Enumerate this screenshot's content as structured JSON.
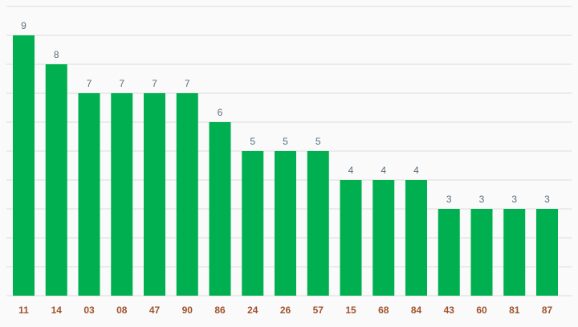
{
  "chart_data": {
    "type": "bar",
    "categories": [
      "11",
      "14",
      "03",
      "08",
      "47",
      "90",
      "86",
      "24",
      "26",
      "57",
      "15",
      "68",
      "84",
      "43",
      "60",
      "81",
      "87"
    ],
    "values": [
      9,
      8,
      7,
      7,
      7,
      7,
      6,
      5,
      5,
      5,
      4,
      4,
      4,
      3,
      3,
      3,
      3
    ],
    "ylim": [
      0,
      10
    ],
    "grid": true,
    "colors": {
      "bar": "#00b050",
      "value_label": "#5a6e7e",
      "tick_label": "#a0522d",
      "grid": "#dcdcdc"
    }
  }
}
